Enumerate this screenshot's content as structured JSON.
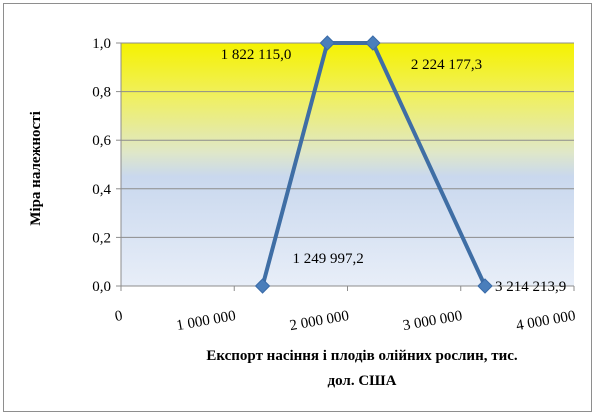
{
  "chart_data": {
    "type": "line",
    "title": "",
    "xlabel_lines": [
      "Експорт насіння і плодів олійних рослин, тис.",
      "дол. США"
    ],
    "ylabel": "Міра належності",
    "xlim": [
      0,
      4000000
    ],
    "ylim": [
      0,
      1
    ],
    "x_ticks": [
      0,
      1000000,
      2000000,
      3000000,
      4000000
    ],
    "x_tick_labels": [
      "0",
      "1 000 000",
      "2 000 000",
      "3 000 000",
      "4 000 000"
    ],
    "y_ticks": [
      0,
      0.2,
      0.4,
      0.6,
      0.8,
      1.0
    ],
    "y_tick_labels": [
      "0,0",
      "0,2",
      "0,4",
      "0,6",
      "0,8",
      "1,0"
    ],
    "grid": true,
    "legend": "none",
    "series": [
      {
        "x": [
          1249997.2,
          1822115.0,
          2224177.3,
          3214213.9
        ],
        "y": [
          0,
          1,
          1,
          0
        ],
        "labels": [
          "1 249 997,2",
          "1 822 115,0",
          "2 224 177,3",
          "3 214 213,9"
        ],
        "color": "#3f6ea5",
        "marker_color": "#4a7ebb"
      }
    ],
    "background_gradient": [
      "#f5f200",
      "#f0f060",
      "#dfe7c8",
      "#c9d8ee",
      "#e8eef8"
    ]
  }
}
